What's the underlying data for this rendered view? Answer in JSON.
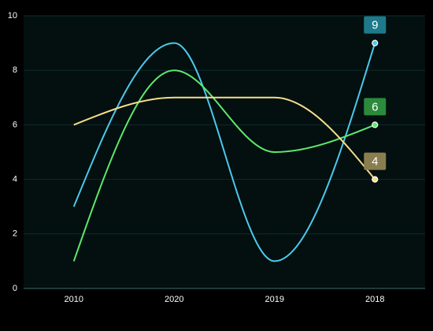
{
  "chart_data": {
    "type": "line",
    "categories": [
      "2010",
      "2020",
      "2019",
      "2018"
    ],
    "series": [
      {
        "color": "#4cc8ee",
        "label_bg": "#1e7a8a",
        "values": [
          3,
          9,
          1,
          9
        ]
      },
      {
        "color": "#5fe86c",
        "label_bg": "#2b8a3c",
        "values": [
          1,
          8,
          5,
          6
        ]
      },
      {
        "color": "#f6dd8c",
        "label_bg": "#8a7d50",
        "values": [
          6,
          7,
          7,
          4
        ]
      }
    ],
    "ylim": [
      0,
      10
    ],
    "yticks": [
      0,
      2,
      4,
      6,
      8,
      10
    ],
    "grid": true,
    "smooth": true,
    "end_labels": true
  }
}
